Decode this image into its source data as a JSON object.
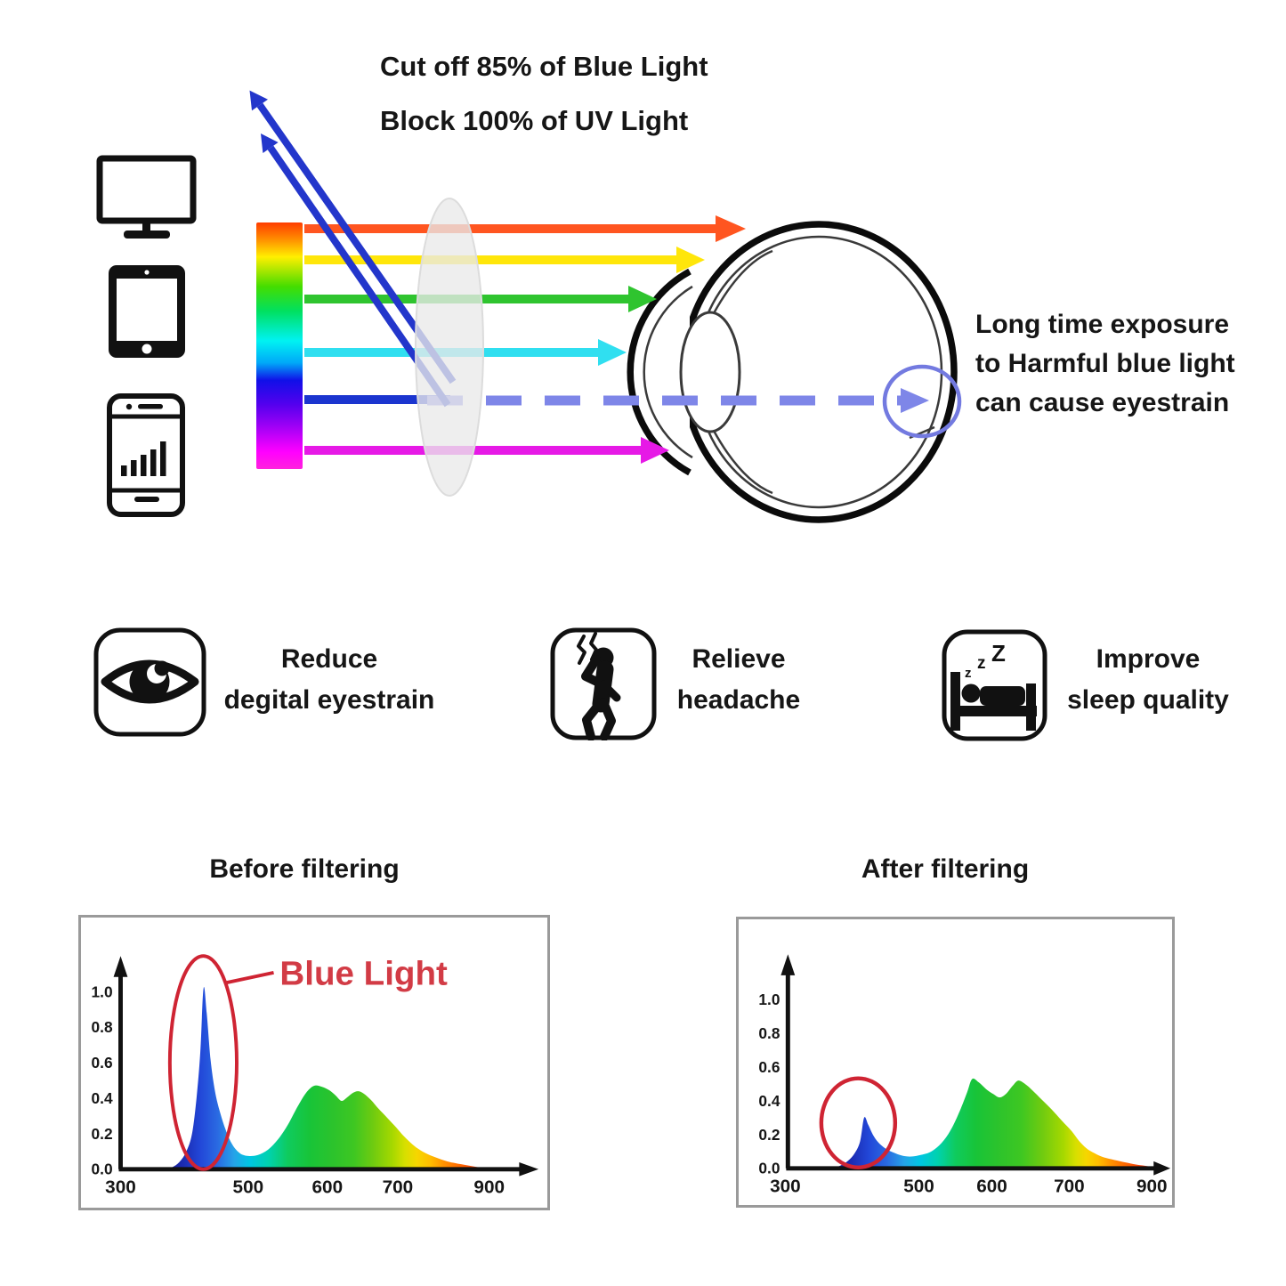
{
  "header": {
    "line1": "Cut off 85% of Blue Light",
    "line2": "Block 100% of UV Light"
  },
  "devices": {
    "icons": [
      "monitor-icon",
      "tablet-icon",
      "smartphone-icon"
    ]
  },
  "eye_note": {
    "lines": [
      "Long time exposure",
      "to Harmful blue light",
      "can cause eyestrain"
    ]
  },
  "benefits": [
    {
      "icon": "eye-icon",
      "lines": [
        "Reduce",
        "degital eyestrain"
      ]
    },
    {
      "icon": "headache-icon",
      "lines": [
        "Relieve",
        "headache"
      ]
    },
    {
      "icon": "sleep-icon",
      "lines": [
        "Improve",
        "sleep quality"
      ],
      "zzz": [
        "z",
        "z",
        "Z"
      ]
    }
  ],
  "colors": {
    "blue_ray": "#1b35cf",
    "uv_ray": "#2336cb",
    "dashed_ray": "#7e86e8",
    "retina_circle": "#737ae0",
    "annotation_red": "#d23b45",
    "annotation_circle_red": "#cf2433",
    "lens_gray": "#ececec",
    "orange_ray": "#ff5520",
    "yellow_ray": "#ffe60a",
    "green_ray": "#2fc42f",
    "cyan_ray": "#30dff0",
    "magenta_ray": "#e619e6",
    "chart_border_gray": "#9a9a9a"
  },
  "spectrum_bar_stops": [
    [
      "0%",
      "#ff3c00"
    ],
    [
      "7%",
      "#ff9000"
    ],
    [
      "14%",
      "#ffef00"
    ],
    [
      "26%",
      "#44dd00"
    ],
    [
      "36%",
      "#00e060"
    ],
    [
      "48%",
      "#00f2f2"
    ],
    [
      "57%",
      "#00a8f8"
    ],
    [
      "64%",
      "#1010e8"
    ],
    [
      "74%",
      "#5500ee"
    ],
    [
      "82%",
      "#9900f5"
    ],
    [
      "93%",
      "#ff00ff"
    ],
    [
      "100%",
      "#ff22dd"
    ]
  ],
  "spectral_colors": [
    [
      368,
      "#17178f"
    ],
    [
      400,
      "#1b2db4"
    ],
    [
      425,
      "#2247d8"
    ],
    [
      452,
      "#2a6ae2"
    ],
    [
      478,
      "#25a3e8"
    ],
    [
      502,
      "#00c6e2"
    ],
    [
      526,
      "#00d2ae"
    ],
    [
      550,
      "#0fcb5e"
    ],
    [
      578,
      "#18c438"
    ],
    [
      608,
      "#2cc32c"
    ],
    [
      638,
      "#3ec722"
    ],
    [
      665,
      "#6fcb10"
    ],
    [
      692,
      "#a5d800"
    ],
    [
      716,
      "#d7df00"
    ],
    [
      742,
      "#f6d600"
    ],
    [
      770,
      "#ffbe00"
    ],
    [
      802,
      "#ff9000"
    ],
    [
      836,
      "#ff6700"
    ],
    [
      870,
      "#f8430a"
    ],
    [
      912,
      "#e92812"
    ]
  ],
  "chart_data": [
    {
      "type": "area",
      "title": "Before filtering",
      "xticks": [
        300,
        500,
        600,
        700,
        900
      ],
      "yticks": [
        "1.0",
        "0.8",
        "0.6",
        "0.4",
        "0.2",
        "0.0"
      ],
      "xlim": [
        300,
        930
      ],
      "ylim": [
        0,
        1.1
      ],
      "grid": false,
      "annotation": {
        "label": "Blue Light",
        "circled_peak_nm": 430,
        "circled_peak_value": 1.0
      },
      "points": [
        [
          368,
          0
        ],
        [
          380,
          0.01
        ],
        [
          392,
          0.04
        ],
        [
          403,
          0.1
        ],
        [
          412,
          0.2
        ],
        [
          419,
          0.4
        ],
        [
          425,
          0.66
        ],
        [
          430,
          1.02
        ],
        [
          435,
          0.88
        ],
        [
          441,
          0.62
        ],
        [
          448,
          0.44
        ],
        [
          456,
          0.32
        ],
        [
          465,
          0.22
        ],
        [
          475,
          0.14
        ],
        [
          487,
          0.09
        ],
        [
          500,
          0.075
        ],
        [
          512,
          0.08
        ],
        [
          525,
          0.11
        ],
        [
          538,
          0.17
        ],
        [
          550,
          0.25
        ],
        [
          562,
          0.35
        ],
        [
          573,
          0.43
        ],
        [
          583,
          0.47
        ],
        [
          593,
          0.465
        ],
        [
          603,
          0.445
        ],
        [
          612,
          0.415
        ],
        [
          620,
          0.385
        ],
        [
          628,
          0.405
        ],
        [
          636,
          0.43
        ],
        [
          644,
          0.44
        ],
        [
          652,
          0.425
        ],
        [
          662,
          0.39
        ],
        [
          673,
          0.34
        ],
        [
          685,
          0.29
        ],
        [
          698,
          0.235
        ],
        [
          712,
          0.19
        ],
        [
          728,
          0.15
        ],
        [
          745,
          0.115
        ],
        [
          765,
          0.085
        ],
        [
          790,
          0.06
        ],
        [
          815,
          0.04
        ],
        [
          845,
          0.025
        ],
        [
          875,
          0.012
        ],
        [
          905,
          0.002
        ]
      ]
    },
    {
      "type": "area",
      "title": "After filtering",
      "xticks": [
        300,
        500,
        600,
        700,
        900
      ],
      "yticks": [
        "1.0",
        "0.8",
        "0.6",
        "0.4",
        "0.2",
        "0.0"
      ],
      "xlim": [
        300,
        930
      ],
      "ylim": [
        0,
        1.1
      ],
      "grid": false,
      "annotation": {
        "label": "",
        "circled_peak_nm": 418,
        "circled_peak_value": 0.3
      },
      "points": [
        [
          370,
          0
        ],
        [
          382,
          0.015
        ],
        [
          394,
          0.045
        ],
        [
          404,
          0.09
        ],
        [
          412,
          0.16
        ],
        [
          418,
          0.3
        ],
        [
          424,
          0.26
        ],
        [
          431,
          0.2
        ],
        [
          439,
          0.155
        ],
        [
          449,
          0.12
        ],
        [
          461,
          0.095
        ],
        [
          475,
          0.075
        ],
        [
          489,
          0.07
        ],
        [
          503,
          0.08
        ],
        [
          517,
          0.1
        ],
        [
          531,
          0.15
        ],
        [
          544,
          0.23
        ],
        [
          556,
          0.34
        ],
        [
          566,
          0.45
        ],
        [
          573,
          0.53
        ],
        [
          582,
          0.51
        ],
        [
          592,
          0.47
        ],
        [
          602,
          0.44
        ],
        [
          610,
          0.42
        ],
        [
          618,
          0.44
        ],
        [
          627,
          0.49
        ],
        [
          634,
          0.52
        ],
        [
          643,
          0.5
        ],
        [
          653,
          0.46
        ],
        [
          664,
          0.41
        ],
        [
          677,
          0.35
        ],
        [
          691,
          0.28
        ],
        [
          706,
          0.22
        ],
        [
          723,
          0.165
        ],
        [
          741,
          0.12
        ],
        [
          761,
          0.09
        ],
        [
          784,
          0.065
        ],
        [
          809,
          0.05
        ],
        [
          836,
          0.035
        ],
        [
          863,
          0.022
        ],
        [
          891,
          0.012
        ],
        [
          912,
          0.002
        ]
      ]
    }
  ]
}
